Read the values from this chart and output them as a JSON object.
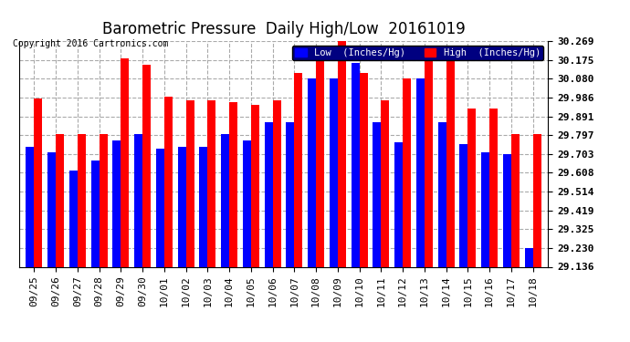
{
  "title": "Barometric Pressure  Daily High/Low  20161019",
  "copyright": "Copyright 2016 Cartronics.com",
  "dates": [
    "09/25",
    "09/26",
    "09/27",
    "09/28",
    "09/29",
    "09/30",
    "10/01",
    "10/02",
    "10/03",
    "10/04",
    "10/05",
    "10/06",
    "10/07",
    "10/08",
    "10/09",
    "10/10",
    "10/11",
    "10/12",
    "10/13",
    "10/14",
    "10/15",
    "10/16",
    "10/17",
    "10/18"
  ],
  "low_values": [
    29.74,
    29.71,
    29.62,
    29.67,
    29.77,
    29.8,
    29.73,
    29.74,
    29.74,
    29.8,
    29.77,
    29.86,
    29.86,
    30.08,
    30.08,
    30.16,
    29.86,
    29.76,
    30.08,
    29.86,
    29.75,
    29.71,
    29.7,
    29.23
  ],
  "high_values": [
    29.98,
    29.8,
    29.8,
    29.8,
    30.18,
    30.15,
    29.99,
    29.97,
    29.97,
    29.96,
    29.95,
    29.97,
    30.11,
    30.18,
    30.27,
    30.11,
    29.97,
    30.08,
    30.19,
    30.17,
    29.93,
    29.93,
    29.8,
    29.8
  ],
  "low_color": "#0000ff",
  "high_color": "#ff0000",
  "bg_color": "#ffffff",
  "grid_color": "#aaaaaa",
  "yticks": [
    29.136,
    29.23,
    29.325,
    29.419,
    29.514,
    29.608,
    29.703,
    29.797,
    29.891,
    29.986,
    30.08,
    30.175,
    30.269
  ],
  "ymin": 29.136,
  "ymax": 30.269,
  "title_fontsize": 12,
  "tick_fontsize": 8,
  "legend_label_low": "Low  (Inches/Hg)",
  "legend_label_high": "High  (Inches/Hg)"
}
